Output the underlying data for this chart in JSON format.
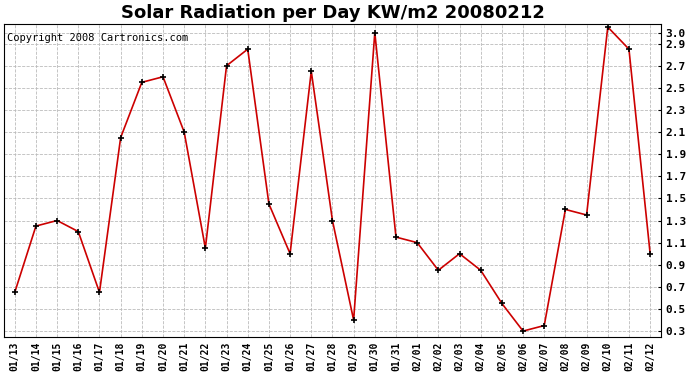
{
  "title": "Solar Radiation per Day KW/m2 20080212",
  "copyright": "Copyright 2008 Cartronics.com",
  "dates": [
    "01/13",
    "01/14",
    "01/15",
    "01/16",
    "01/17",
    "01/18",
    "01/19",
    "01/20",
    "01/21",
    "01/22",
    "01/23",
    "01/24",
    "01/25",
    "01/26",
    "01/27",
    "01/28",
    "01/29",
    "01/30",
    "01/31",
    "02/01",
    "02/02",
    "02/03",
    "02/04",
    "02/05",
    "02/06",
    "02/07",
    "02/08",
    "02/09",
    "02/10",
    "02/11",
    "02/12"
  ],
  "values": [
    0.65,
    1.25,
    1.3,
    1.2,
    0.65,
    2.05,
    2.55,
    2.6,
    2.1,
    1.05,
    2.7,
    2.85,
    1.45,
    1.0,
    2.65,
    1.3,
    0.4,
    3.0,
    1.15,
    1.1,
    0.85,
    1.0,
    0.85,
    0.55,
    0.3,
    0.35,
    1.4,
    1.35,
    3.05,
    2.85,
    1.0
  ],
  "line_color": "#cc0000",
  "marker_color": "#000000",
  "bg_color": "#ffffff",
  "grid_color": "#bbbbbb",
  "yticks": [
    0.3,
    0.5,
    0.7,
    0.9,
    1.1,
    1.3,
    1.5,
    1.7,
    1.9,
    2.1,
    2.3,
    2.5,
    2.7,
    2.9,
    3.0
  ],
  "ytick_labels": [
    "0.3",
    "0.5",
    "0.7",
    "0.9",
    "1.1",
    "1.3",
    "1.5",
    "1.7",
    "1.9",
    "2.1",
    "2.3",
    "2.5",
    "2.7",
    "2.9",
    "3.0"
  ],
  "title_fontsize": 13,
  "copyright_fontsize": 7.5
}
